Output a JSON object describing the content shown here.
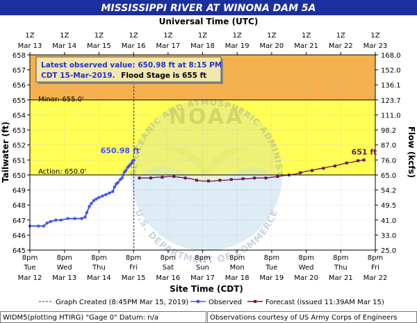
{
  "title": "MISSISSIPPI RIVER AT WINONA DAM 5A",
  "top_axis_title": "Universal Time (UTC)",
  "bottom_axis_title": "Site Time (CDT)",
  "left_axis_title": "Tailwater (ft)",
  "right_axis_title": "Flow (kcfs)",
  "info_box": {
    "line1": "Latest observed value: 650.98 ft at 8:15 PM",
    "line2_date": "CDT 15-Mar-2019.",
    "line2_flood": "Flood Stage is 655 ft"
  },
  "minor_label": "Minor: 655.0'",
  "action_label": "Action: 650.0'",
  "latest_label": "650.98 ft",
  "forecast_end_label": "651 ft",
  "legend": {
    "graph_created": "Graph Created (8:45PM Mar 15, 2019)",
    "observed": "Observed",
    "forecast": "Forecast (issued 11:39AM Mar 15)"
  },
  "footer": {
    "left": "WIDM5(plotting HTIRG) \"Gage 0\" Datum: n/a",
    "right": "Observations courtesy of US Army Corps of Engineers"
  },
  "watermark": {
    "arc_top": "NATIONAL OCEANIC AND ATMOSPHERIC ADMINISTRATION",
    "arc_bottom": "U.S. DEPARTMENT OF COMMERCE",
    "center": "NOAA"
  },
  "colors": {
    "title_bg": "#1c2f9e",
    "minor_band": "#f5b04e",
    "action_band": "#ffff55",
    "below_band": "#ffffff",
    "observed": "#4455ee",
    "forecast": "#6b1450"
  },
  "chart_data": {
    "type": "line",
    "y_left": {
      "label": "Tailwater (ft)",
      "min": 645,
      "max": 658,
      "ticks": [
        645,
        646,
        647,
        648,
        649,
        650,
        651,
        652,
        653,
        654,
        655,
        656,
        657,
        658
      ]
    },
    "y_right": {
      "label": "Flow (kcfs)",
      "ticks": [
        "25.0",
        "33.0",
        "41.0",
        "49.5",
        "54.2",
        "65.0",
        "76.0",
        "87.0",
        "98.2",
        "111.0",
        "123.7",
        "136.1",
        "152.0",
        "168.0"
      ]
    },
    "x_bottom": {
      "label": "Site Time (CDT)",
      "tick_time": [
        "8pm",
        "8pm",
        "8pm",
        "8pm",
        "8pm",
        "8pm",
        "8pm",
        "8pm",
        "8pm",
        "8pm",
        "8pm"
      ],
      "tick_day": [
        "Tue",
        "Wed",
        "Thu",
        "Fri",
        "Sat",
        "Sun",
        "Mon",
        "Tue",
        "Wed",
        "Thu",
        "Fri"
      ],
      "tick_date": [
        "Mar 12",
        "Mar 13",
        "Mar 14",
        "Mar 15",
        "Mar 16",
        "Mar 17",
        "Mar 18",
        "Mar 19",
        "Mar 20",
        "Mar 21",
        "Mar 22"
      ]
    },
    "x_top": {
      "label": "Universal Time (UTC)",
      "tick_time": [
        "1Z",
        "1Z",
        "1Z",
        "1Z",
        "1Z",
        "1Z",
        "1Z",
        "1Z",
        "1Z",
        "1Z",
        "1Z"
      ],
      "tick_date": [
        "Mar 13",
        "Mar 14",
        "Mar 15",
        "Mar 16",
        "Mar 17",
        "Mar 18",
        "Mar 19",
        "Mar 20",
        "Mar 21",
        "Mar 22",
        "Mar 23"
      ]
    },
    "flood_categories": {
      "minor_ft": 655.0,
      "action_ft": 650.0
    },
    "graph_created_day": 3.01,
    "observed": {
      "name": "Observed",
      "x_days": [
        0.0,
        0.25,
        0.4,
        0.5,
        0.6,
        0.75,
        0.9,
        1.1,
        1.3,
        1.5,
        1.6,
        1.65,
        1.72,
        1.78,
        1.85,
        1.92,
        2.0,
        2.1,
        2.2,
        2.3,
        2.4,
        2.45,
        2.5,
        2.55,
        2.62,
        2.67,
        2.7,
        2.74,
        2.78,
        2.83,
        2.87,
        2.91,
        2.95,
        2.98,
        3.01
      ],
      "y_ft": [
        646.6,
        646.6,
        646.6,
        646.8,
        646.9,
        647.0,
        647.0,
        647.1,
        647.1,
        647.1,
        647.2,
        647.5,
        647.9,
        648.1,
        648.3,
        648.4,
        648.5,
        648.6,
        648.7,
        648.8,
        648.9,
        649.2,
        649.4,
        649.5,
        649.7,
        649.8,
        650.0,
        650.2,
        650.3,
        650.5,
        650.6,
        650.7,
        650.8,
        650.95,
        650.98
      ]
    },
    "forecast": {
      "name": "Forecast (issued 11:39AM Mar 15)",
      "x_days": [
        3.17,
        3.33,
        3.5,
        3.67,
        3.83,
        4.0,
        4.17,
        4.33,
        4.5,
        4.67,
        4.83,
        5.0,
        5.17,
        5.33,
        5.5,
        5.67,
        5.83,
        6.0,
        6.17,
        6.33,
        6.5,
        6.67,
        6.83,
        7.0,
        7.17,
        7.33,
        7.5,
        7.67,
        7.83,
        8.0,
        8.17,
        8.33,
        8.5,
        8.67,
        8.83,
        9.0,
        9.17,
        9.33,
        9.5,
        9.67
      ],
      "y_ft": [
        649.8,
        649.8,
        649.8,
        649.85,
        649.85,
        649.9,
        649.9,
        649.85,
        649.8,
        649.75,
        649.65,
        649.6,
        649.6,
        649.6,
        649.65,
        649.65,
        649.7,
        649.7,
        649.75,
        649.75,
        649.8,
        649.8,
        649.8,
        649.85,
        649.9,
        649.95,
        650.0,
        650.05,
        650.15,
        650.25,
        650.3,
        650.4,
        650.45,
        650.55,
        650.6,
        650.7,
        650.8,
        650.85,
        650.95,
        651.0
      ]
    }
  }
}
